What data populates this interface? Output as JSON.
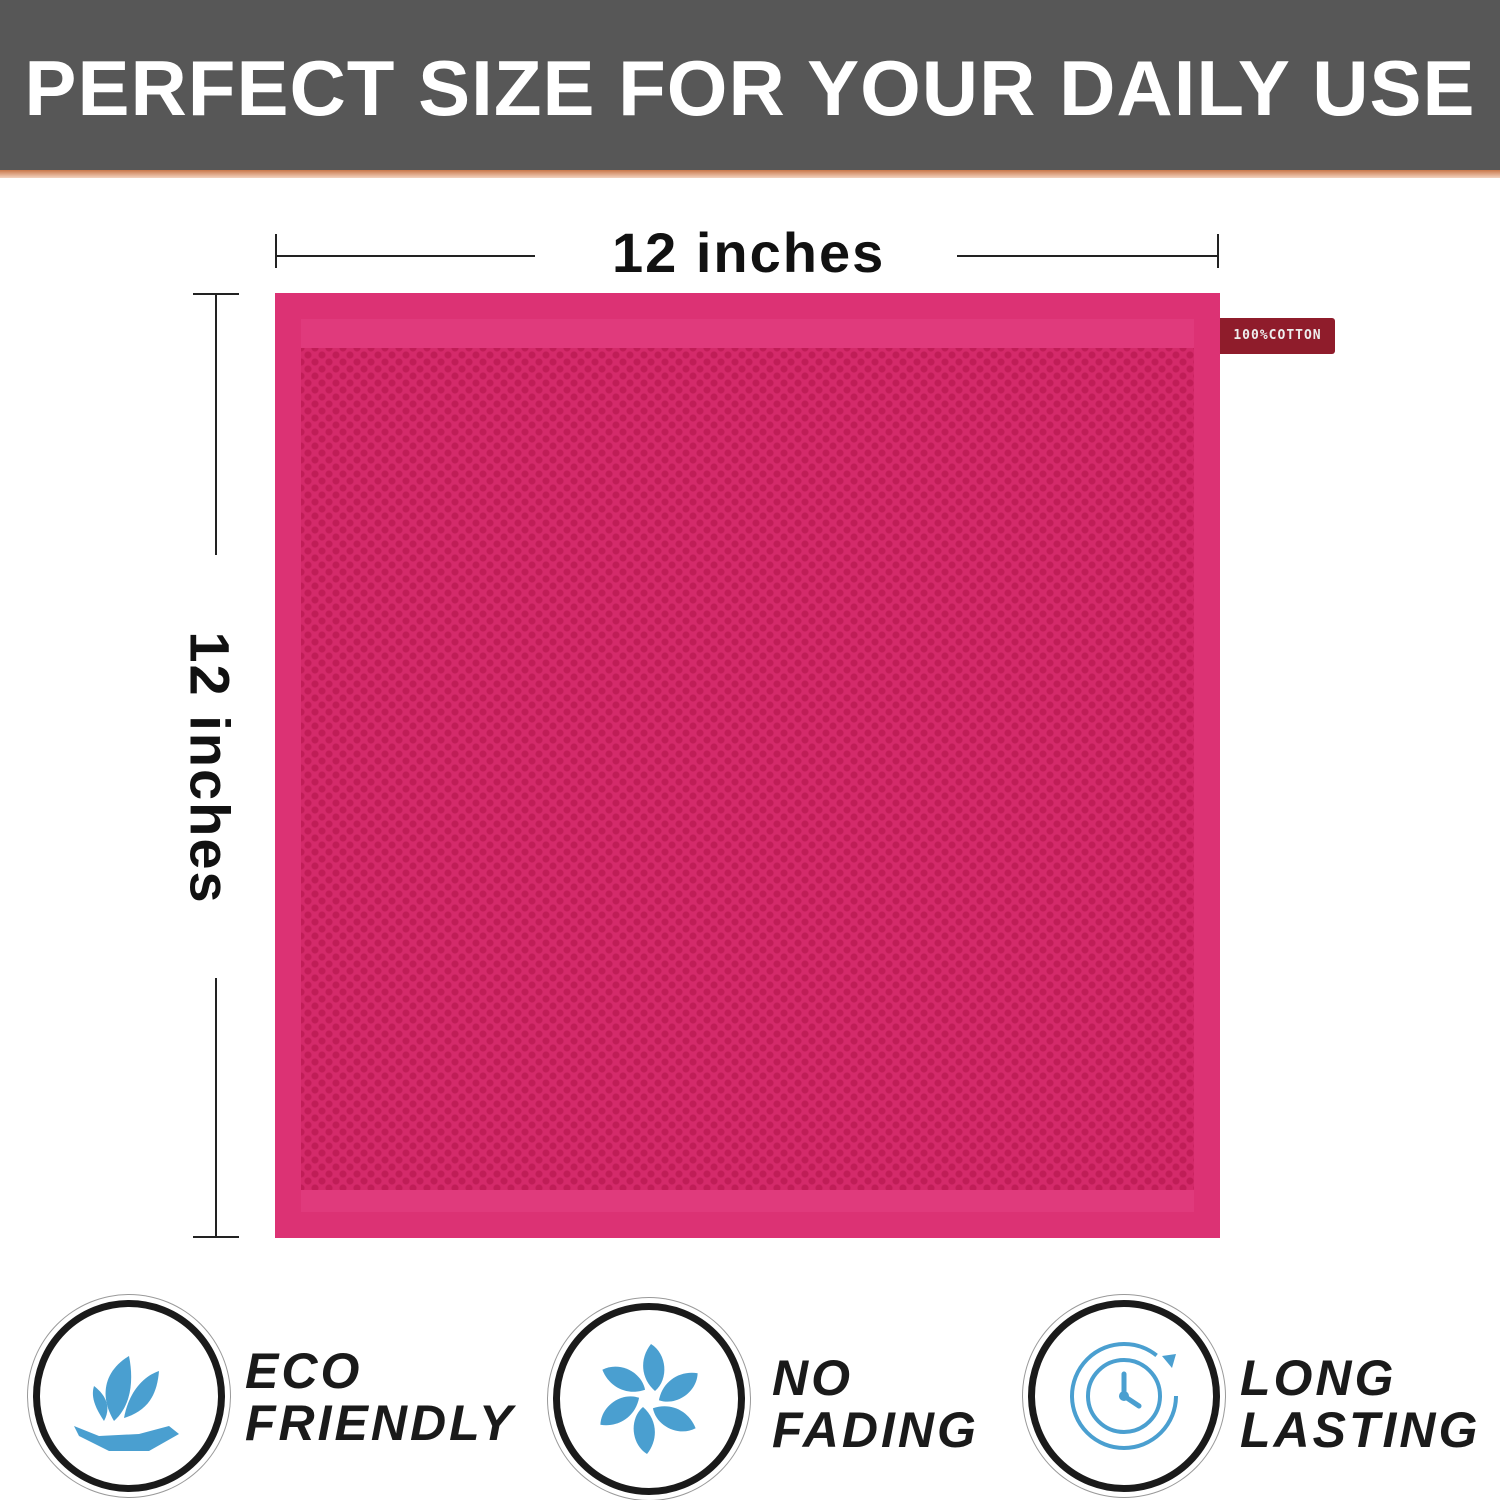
{
  "banner": {
    "title": "PERFECT SIZE FOR YOUR DAILY USE"
  },
  "dimensions": {
    "width_label": "12 inches",
    "height_label": "12 inches"
  },
  "product": {
    "tag_text": "100%COTTON",
    "towel_color": "#e03a7c"
  },
  "features": [
    {
      "icon": "hand-leaf-icon",
      "line1": "ECO",
      "line2": "FRIENDLY"
    },
    {
      "icon": "pinwheel-icon",
      "line1": "NO",
      "line2": "FADING"
    },
    {
      "icon": "clock-cycle-icon",
      "line1": "LONG",
      "line2": "LASTING"
    }
  ],
  "colors": {
    "banner": "#575757",
    "icon_blue": "#4a9fd0"
  }
}
